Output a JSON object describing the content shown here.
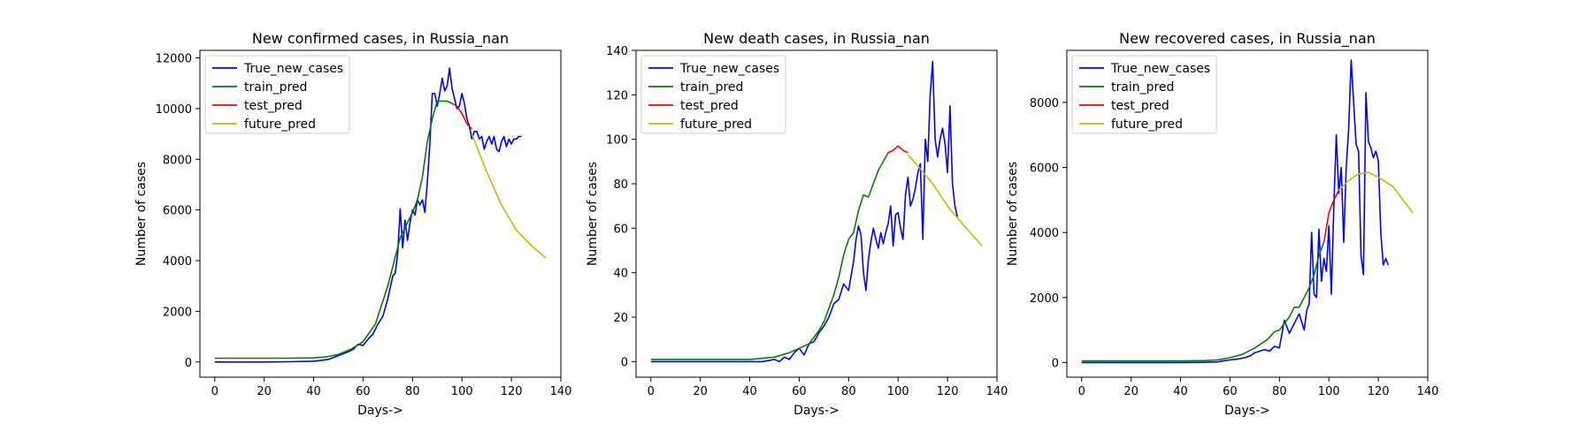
{
  "chart_data": [
    {
      "type": "line",
      "title": "New confirmed cases, in Russia_nan",
      "xlabel": "Days->",
      "ylabel": "Number of cases",
      "xlim": [
        -6,
        140
      ],
      "ylim": [
        -600,
        12300
      ],
      "xticks": [
        0,
        20,
        40,
        60,
        80,
        100,
        120,
        140
      ],
      "yticks": [
        0,
        2000,
        4000,
        6000,
        8000,
        10000,
        12000
      ],
      "legend_position": "top-left",
      "series": [
        {
          "name": "True_new_cases",
          "color": "#0000ff",
          "x": [
            0,
            10,
            20,
            30,
            40,
            46,
            50,
            54,
            56,
            58,
            60,
            62,
            64,
            66,
            68,
            70,
            72,
            73,
            74,
            75,
            76,
            77,
            78,
            79,
            80,
            81,
            82,
            83,
            84,
            85,
            86,
            87,
            88,
            89,
            90,
            91,
            92,
            93,
            94,
            95,
            96,
            97,
            98,
            99,
            100,
            101,
            102,
            103,
            104,
            105,
            106,
            107,
            108,
            109,
            110,
            111,
            112,
            113,
            114,
            115,
            116,
            117,
            118,
            119,
            120,
            121,
            122,
            123,
            124
          ],
          "y": [
            0,
            0,
            0,
            10,
            30,
            100,
            250,
            400,
            500,
            700,
            650,
            900,
            1100,
            1500,
            1800,
            2500,
            3400,
            3500,
            4300,
            6050,
            4500,
            5600,
            4800,
            5500,
            6000,
            5800,
            6400,
            6200,
            6400,
            5900,
            7100,
            8600,
            10600,
            10600,
            10100,
            10600,
            11200,
            10700,
            10900,
            11600,
            10800,
            10400,
            10000,
            10100,
            10600,
            10200,
            9600,
            9300,
            8800,
            9100,
            9100,
            8800,
            8900,
            8400,
            8700,
            8900,
            8600,
            8900,
            8400,
            8300,
            8700,
            8900,
            8500,
            8800,
            8600,
            8800,
            8800,
            8900,
            8900
          ]
        },
        {
          "name": "train_pred",
          "color": "#008000",
          "x": [
            0,
            10,
            20,
            30,
            40,
            45,
            50,
            55,
            60,
            65,
            70,
            75,
            78,
            80,
            82,
            84,
            86,
            88,
            90,
            92,
            94,
            96
          ],
          "y": [
            150,
            150,
            150,
            150,
            160,
            200,
            300,
            500,
            800,
            1500,
            3000,
            4900,
            5500,
            5900,
            6400,
            7300,
            8700,
            9600,
            10300,
            10300,
            10300,
            10200
          ]
        },
        {
          "name": "test_pred",
          "color": "#ff0000",
          "x": [
            96,
            98,
            100,
            102,
            104
          ],
          "y": [
            10200,
            10100,
            9800,
            9400,
            9200
          ]
        },
        {
          "name": "future_pred",
          "color": "#bfbf00",
          "x": [
            104,
            110,
            116,
            122,
            128,
            134
          ],
          "y": [
            9000,
            7500,
            6200,
            5200,
            4600,
            4100
          ]
        }
      ]
    },
    {
      "type": "line",
      "title": "New death cases, in Russia_nan",
      "xlabel": "Days->",
      "ylabel": "Number of cases",
      "xlim": [
        -6,
        140
      ],
      "ylim": [
        -7,
        140
      ],
      "xticks": [
        0,
        20,
        40,
        60,
        80,
        100,
        120,
        140
      ],
      "yticks": [
        0,
        20,
        40,
        60,
        80,
        100,
        120,
        140
      ],
      "legend_position": "top-left",
      "series": [
        {
          "name": "True_new_cases",
          "color": "#0000ff",
          "x": [
            0,
            10,
            20,
            30,
            40,
            45,
            50,
            52,
            54,
            56,
            58,
            60,
            62,
            64,
            66,
            68,
            70,
            72,
            74,
            76,
            78,
            80,
            82,
            83,
            84,
            85,
            86,
            87,
            88,
            89,
            90,
            91,
            92,
            93,
            94,
            95,
            96,
            97,
            98,
            99,
            100,
            101,
            102,
            103,
            104,
            105,
            106,
            107,
            108,
            109,
            110,
            111,
            112,
            113,
            114,
            115,
            116,
            117,
            118,
            119,
            120,
            121,
            122,
            123,
            124
          ],
          "y": [
            0,
            0,
            0,
            0,
            0,
            0,
            1,
            0,
            2,
            1,
            4,
            6,
            3,
            8,
            9,
            13,
            16,
            20,
            26,
            28,
            35,
            32,
            45,
            55,
            61,
            57,
            40,
            32,
            46,
            54,
            60,
            55,
            51,
            58,
            53,
            58,
            62,
            70,
            52,
            66,
            67,
            60,
            55,
            75,
            83,
            70,
            73,
            78,
            85,
            89,
            55,
            100,
            90,
            120,
            135,
            100,
            92,
            100,
            105,
            98,
            85,
            115,
            80,
            70,
            65
          ]
        },
        {
          "name": "train_pred",
          "color": "#008000",
          "x": [
            0,
            20,
            40,
            50,
            56,
            60,
            64,
            68,
            70,
            72,
            74,
            76,
            78,
            80,
            82,
            84,
            86,
            88,
            90,
            92,
            94,
            96,
            98
          ],
          "y": [
            1,
            1,
            1,
            2,
            4,
            6,
            8,
            14,
            18,
            24,
            30,
            38,
            48,
            55,
            58,
            68,
            75,
            74,
            80,
            86,
            90,
            94,
            95
          ]
        },
        {
          "name": "test_pred",
          "color": "#ff0000",
          "x": [
            96,
            98,
            100,
            102,
            104
          ],
          "y": [
            94,
            95,
            97,
            95,
            94
          ]
        },
        {
          "name": "future_pred",
          "color": "#bfbf00",
          "x": [
            104,
            108,
            114,
            120,
            126,
            134
          ],
          "y": [
            93,
            88,
            80,
            70,
            62,
            52
          ]
        }
      ]
    },
    {
      "type": "line",
      "title": "New recovered cases, in Russia_nan",
      "xlabel": "Days->",
      "ylabel": "Number of cases",
      "xlim": [
        -6,
        140
      ],
      "ylim": [
        -450,
        9600
      ],
      "xticks": [
        0,
        20,
        40,
        60,
        80,
        100,
        120,
        140
      ],
      "yticks": [
        0,
        2000,
        4000,
        6000,
        8000
      ],
      "legend_position": "top-left",
      "series": [
        {
          "name": "True_new_cases",
          "color": "#0000ff",
          "x": [
            0,
            10,
            20,
            30,
            40,
            50,
            55,
            58,
            60,
            62,
            64,
            66,
            68,
            70,
            72,
            74,
            76,
            78,
            80,
            82,
            84,
            86,
            88,
            90,
            91,
            92,
            93,
            94,
            95,
            96,
            97,
            98,
            99,
            100,
            101,
            102,
            103,
            104,
            105,
            106,
            107,
            108,
            109,
            110,
            111,
            112,
            113,
            114,
            115,
            116,
            117,
            118,
            119,
            120,
            121,
            122,
            123,
            124
          ],
          "y": [
            0,
            0,
            0,
            0,
            0,
            10,
            20,
            60,
            80,
            100,
            120,
            150,
            200,
            300,
            350,
            400,
            350,
            500,
            450,
            1300,
            900,
            1200,
            1500,
            1000,
            1600,
            1800,
            4000,
            2100,
            2000,
            4100,
            2500,
            3200,
            2800,
            4200,
            2100,
            4800,
            7000,
            5200,
            6000,
            3700,
            6000,
            7200,
            9300,
            8000,
            6700,
            6500,
            3300,
            2700,
            8300,
            6800,
            6600,
            6300,
            6500,
            6200,
            4000,
            3000,
            3200,
            3000
          ]
        },
        {
          "name": "train_pred",
          "color": "#008000",
          "x": [
            0,
            20,
            40,
            50,
            55,
            60,
            65,
            70,
            75,
            78,
            80,
            82,
            84,
            86,
            88,
            90,
            92,
            94,
            96,
            98
          ],
          "y": [
            50,
            50,
            50,
            60,
            80,
            150,
            250,
            450,
            700,
            950,
            1000,
            1200,
            1400,
            1700,
            1700,
            2000,
            2300,
            2700,
            3300,
            3700
          ]
        },
        {
          "name": "test_pred",
          "color": "#ff0000",
          "x": [
            98,
            100,
            102,
            104
          ],
          "y": [
            3700,
            4600,
            5000,
            5300
          ]
        },
        {
          "name": "future_pred",
          "color": "#bfbf00",
          "x": [
            104,
            108,
            112,
            116,
            120,
            126,
            134
          ],
          "y": [
            5300,
            5600,
            5800,
            5850,
            5700,
            5400,
            4600
          ]
        }
      ]
    }
  ]
}
